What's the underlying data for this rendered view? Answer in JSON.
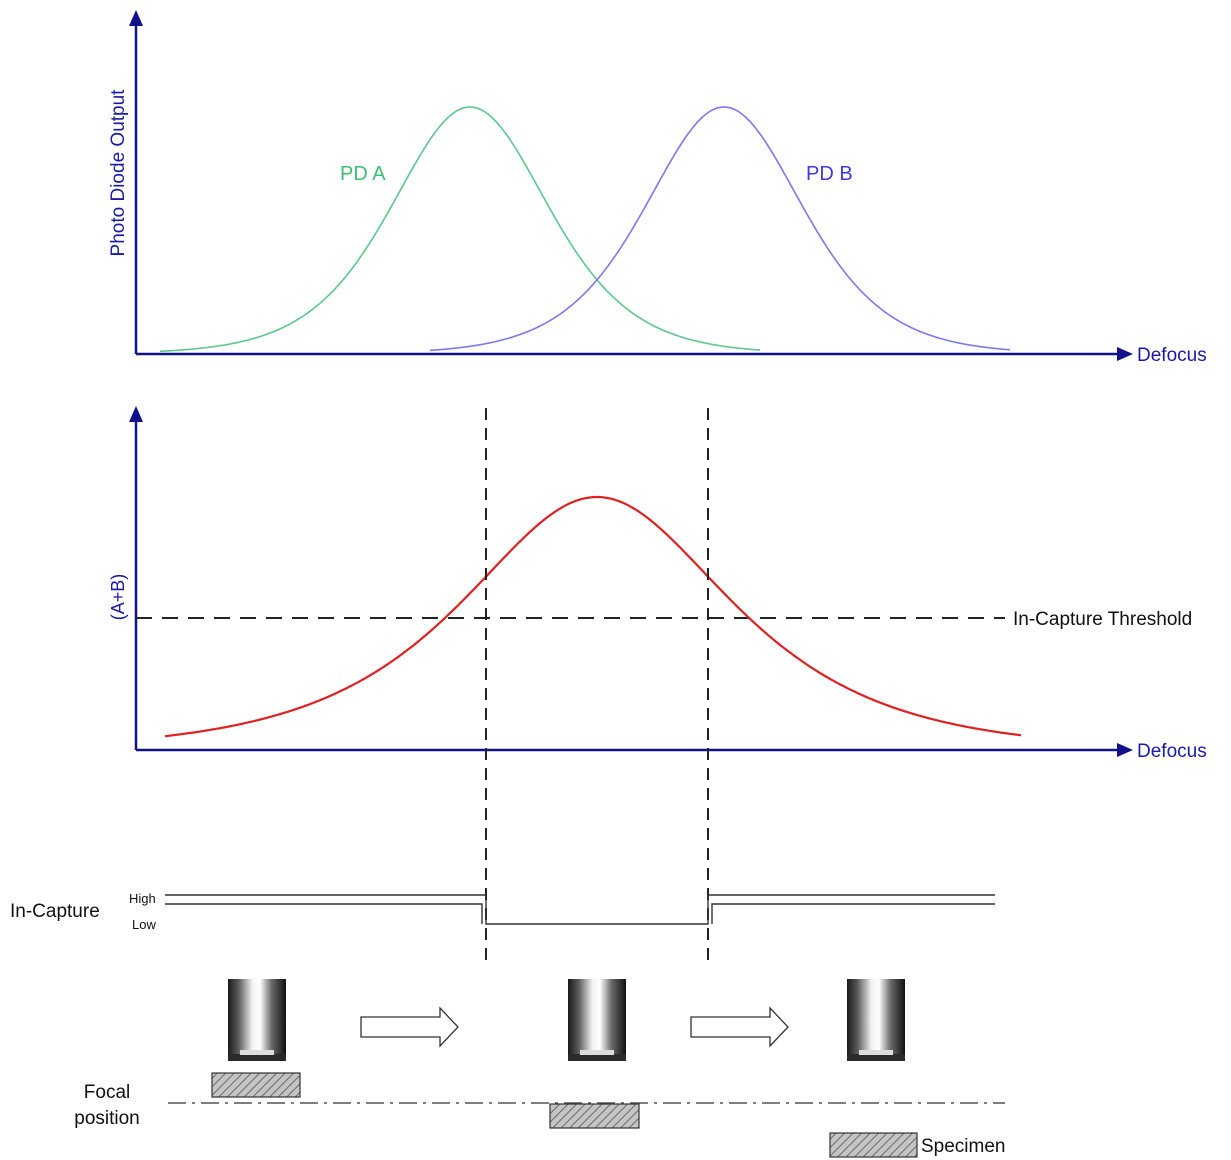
{
  "top_chart": {
    "y_axis_label": "Photo Diode Output",
    "x_axis_label": "Defocus",
    "curve_a_label": "PD A",
    "curve_b_label": "PD B",
    "curve_a_color": "#5cc98a",
    "curve_b_color": "#7a7aee"
  },
  "middle_chart": {
    "y_axis_label": "(A+B)",
    "x_axis_label": "Defocus",
    "threshold_label": "In-Capture Threshold",
    "curve_color": "#e02020"
  },
  "signal": {
    "label": "In-Capture",
    "high_label": "High",
    "low_label": "Low"
  },
  "bottom": {
    "focal_label_line1": "Focal",
    "focal_label_line2": "position",
    "specimen_label": "Specimen"
  },
  "colors": {
    "axis": "#10108a",
    "label_blue": "#1a1aa6"
  }
}
